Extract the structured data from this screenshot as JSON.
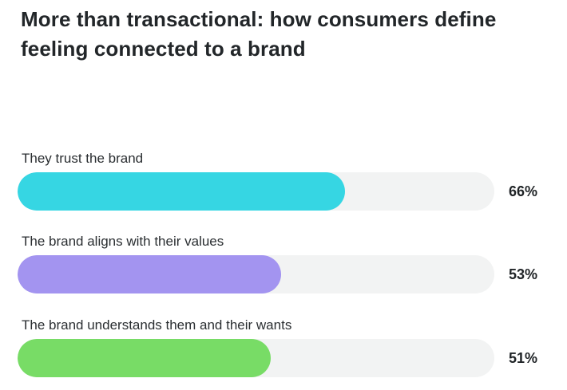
{
  "chart_data": {
    "type": "bar",
    "orientation": "horizontal",
    "title": "More than transactional: how consumers define feeling connected to a brand",
    "categories": [
      "They trust the brand",
      "The brand aligns with their values",
      "The brand understands them and their wants"
    ],
    "values": [
      66,
      53,
      51
    ],
    "value_labels": [
      "66%",
      "53%",
      "51%"
    ],
    "colors": [
      "#36d6e3",
      "#a394f0",
      "#78dc66"
    ],
    "track_color": "#f2f3f3",
    "xlim": [
      0,
      96
    ],
    "grid": false,
    "legend": "none"
  }
}
